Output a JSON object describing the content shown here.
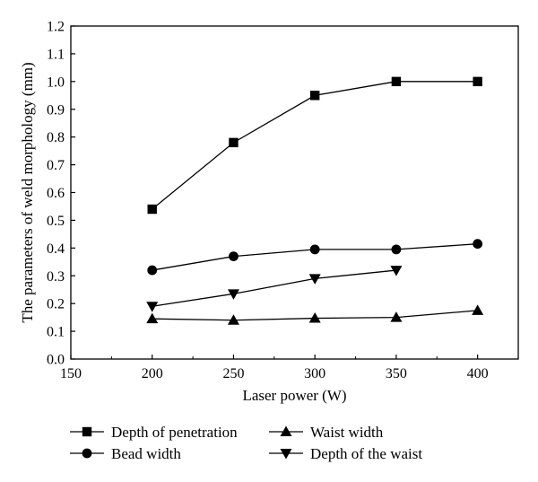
{
  "chart_data": {
    "type": "line",
    "title": "",
    "xlabel": "Laser power (W)",
    "ylabel": "The parameters of weld morphology (mm)",
    "xlim": [
      150,
      425
    ],
    "ylim": [
      0.0,
      1.2
    ],
    "xticks": [
      150,
      200,
      250,
      300,
      350,
      400
    ],
    "xtick_labels": [
      "150",
      "200",
      "250",
      "300",
      "350",
      "400"
    ],
    "yticks": [
      0.0,
      0.1,
      0.2,
      0.3,
      0.4,
      0.5,
      0.6,
      0.7,
      0.8,
      0.9,
      1.0,
      1.1,
      1.2
    ],
    "ytick_labels": [
      "0.0",
      "0.1",
      "0.2",
      "0.3",
      "0.4",
      "0.5",
      "0.6",
      "0.7",
      "0.8",
      "0.9",
      "1.0",
      "1.1",
      "1.2"
    ],
    "grid": false,
    "legend_position": "bottom",
    "series": [
      {
        "name": "Depth of penetration",
        "marker": "square",
        "x": [
          200,
          250,
          300,
          350,
          400
        ],
        "y": [
          0.54,
          0.78,
          0.95,
          1.0,
          1.0
        ]
      },
      {
        "name": "Bead width",
        "marker": "circle",
        "x": [
          200,
          250,
          300,
          350,
          400
        ],
        "y": [
          0.32,
          0.37,
          0.395,
          0.395,
          0.415
        ]
      },
      {
        "name": "Waist width",
        "marker": "triangle-up",
        "x": [
          200,
          250,
          300,
          350,
          400
        ],
        "y": [
          0.145,
          0.14,
          0.147,
          0.15,
          0.175
        ]
      },
      {
        "name": "Depth of the waist",
        "marker": "triangle-down",
        "x": [
          200,
          250,
          300,
          350
        ],
        "y": [
          0.19,
          0.235,
          0.29,
          0.32
        ]
      }
    ]
  }
}
